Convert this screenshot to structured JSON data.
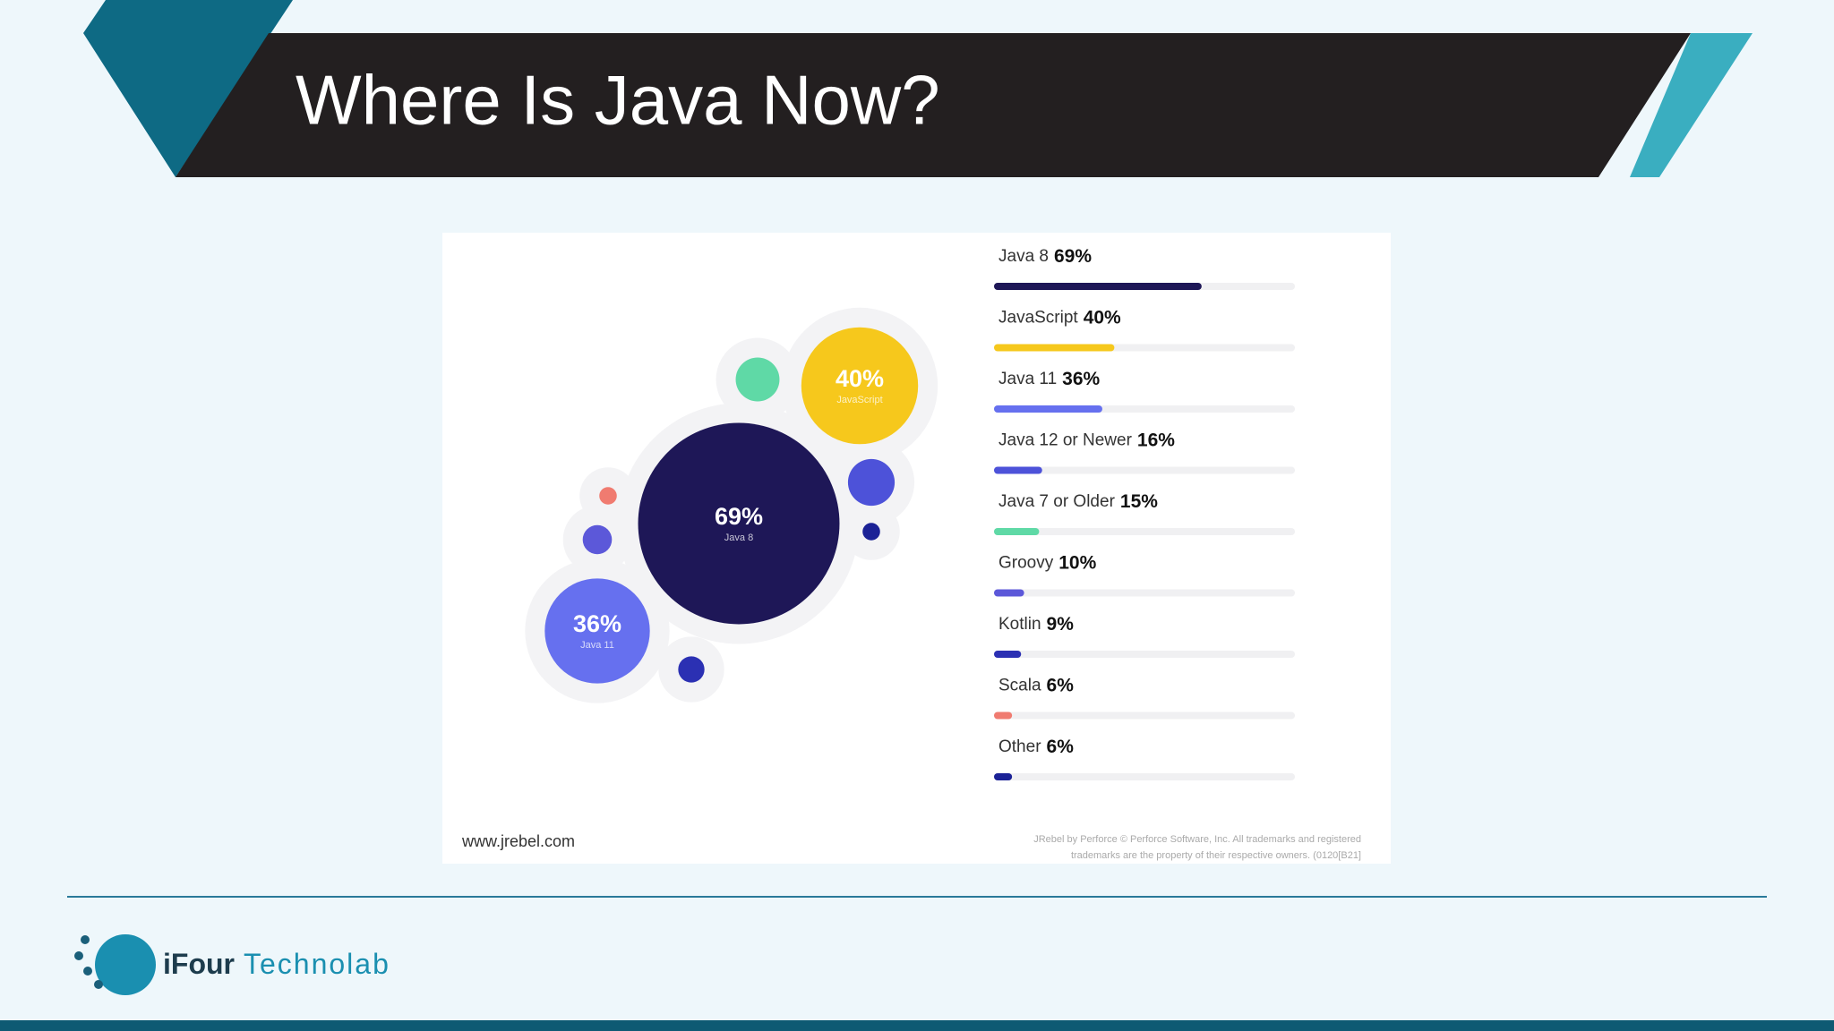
{
  "title": "Where Is Java Now?",
  "chart_data": {
    "type": "bar-bubble",
    "categories": [
      "Java 8",
      "JavaScript",
      "Java 11",
      "Java 12 or Newer",
      "Java 7 or Older",
      "Groovy",
      "Kotlin",
      "Scala",
      "Other"
    ],
    "values": [
      69,
      40,
      36,
      16,
      15,
      10,
      9,
      6,
      6
    ],
    "value_labels": [
      "69%",
      "40%",
      "36%",
      "16%",
      "15%",
      "10%",
      "9%",
      "6%",
      "6%"
    ],
    "colors": [
      "#1e1757",
      "#f6c81c",
      "#6670ef",
      "#4d52d9",
      "#5fd9a6",
      "#5c58d9",
      "#2b30b3",
      "#f07b70",
      "#1b2296"
    ],
    "xlim": [
      0,
      100
    ]
  },
  "source": "www.jrebel.com",
  "fine_print": [
    "JRebel by Perforce © Perforce Software, Inc. All trademarks and registered",
    "trademarks are the property of their respective owners. (0120[B21]"
  ],
  "footer": {
    "brand": "iFour",
    "brand2": "Technolab"
  }
}
